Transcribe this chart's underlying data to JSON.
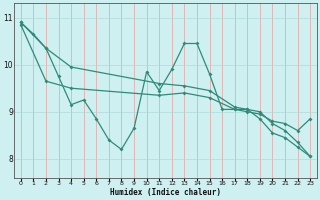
{
  "xlabel": "Humidex (Indice chaleur)",
  "bg_color": "#cff0f0",
  "line_color": "#2e8b7a",
  "xlim": [
    -0.5,
    23.5
  ],
  "ylim": [
    7.6,
    11.3
  ],
  "xticks": [
    0,
    1,
    2,
    3,
    4,
    5,
    6,
    7,
    8,
    9,
    10,
    11,
    12,
    13,
    14,
    15,
    16,
    17,
    18,
    19,
    20,
    21,
    22,
    23
  ],
  "yticks": [
    8,
    9,
    10,
    11
  ],
  "line1_x": [
    0,
    1,
    2,
    3,
    4,
    5,
    6,
    7,
    8,
    9,
    10,
    11,
    12,
    13,
    14,
    15,
    16,
    17,
    18,
    19,
    20,
    21,
    22,
    23
  ],
  "line1_y": [
    10.9,
    10.65,
    10.35,
    9.75,
    9.15,
    9.25,
    8.85,
    8.4,
    8.2,
    8.65,
    9.85,
    9.45,
    9.9,
    10.45,
    10.45,
    9.8,
    9.05,
    9.05,
    9.05,
    8.85,
    8.55,
    8.45,
    8.25,
    8.05
  ],
  "line2_x": [
    0,
    2,
    4,
    11,
    13,
    15,
    17,
    18,
    19,
    20,
    21,
    22,
    23
  ],
  "line2_y": [
    10.9,
    10.35,
    9.95,
    9.6,
    9.55,
    9.45,
    9.1,
    9.05,
    9.0,
    8.75,
    8.6,
    8.35,
    8.05
  ],
  "line3_x": [
    0,
    2,
    4,
    11,
    13,
    15,
    17,
    18,
    19,
    20,
    21,
    22,
    23
  ],
  "line3_y": [
    10.85,
    9.65,
    9.5,
    9.35,
    9.4,
    9.3,
    9.05,
    9.0,
    8.95,
    8.8,
    8.75,
    8.6,
    8.85
  ]
}
